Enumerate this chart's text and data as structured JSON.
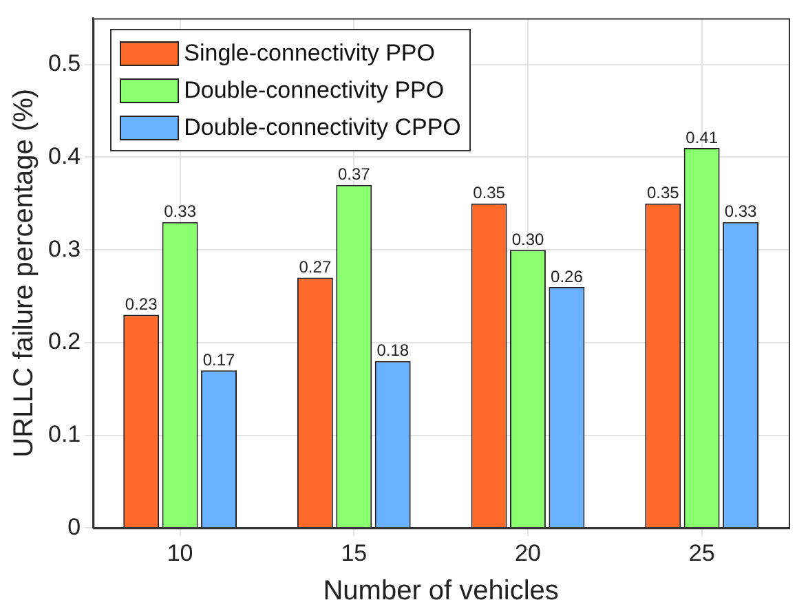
{
  "chart_data": {
    "type": "bar",
    "xlabel": "Number of vehicles",
    "ylabel": "URLLC failure percentage (%)",
    "categories": [
      "10",
      "15",
      "20",
      "25"
    ],
    "series": [
      {
        "name": "Single-connectivity PPO",
        "color": "#ff6929",
        "values": [
          0.23,
          0.27,
          0.35,
          0.35
        ],
        "value_labels": [
          "0.23",
          "0.27",
          "0.35",
          "0.35"
        ]
      },
      {
        "name": "Double-connectivity PPO",
        "color": "#8aff6f",
        "values": [
          0.33,
          0.37,
          0.3,
          0.41
        ],
        "value_labels": [
          "0.33",
          "0.37",
          "0.30",
          "0.41"
        ]
      },
      {
        "name": "Double-connectivity CPPO",
        "color": "#6ab2ff",
        "values": [
          0.17,
          0.18,
          0.26,
          0.33
        ],
        "value_labels": [
          "0.17",
          "0.18",
          "0.26",
          "0.33"
        ]
      }
    ],
    "ylim": [
      0,
      0.55
    ],
    "yticks": [
      0,
      0.1,
      0.2,
      0.3,
      0.4,
      0.5
    ],
    "grid": true,
    "legend": "top left"
  }
}
